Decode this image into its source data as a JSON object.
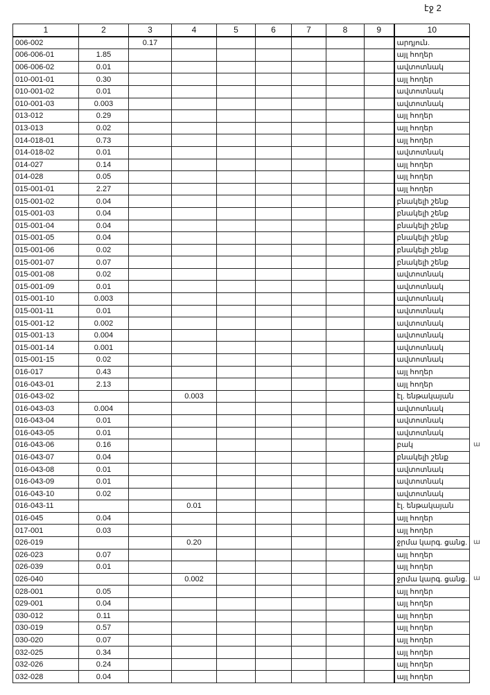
{
  "page_label": "էջ 2",
  "columns": [
    "1",
    "2",
    "3",
    "4",
    "5",
    "6",
    "7",
    "8",
    "9",
    "10"
  ],
  "rows": [
    [
      "006-002",
      "",
      "0.17",
      "",
      "արդյուն."
    ],
    [
      "006-006-01",
      "1.85",
      "",
      "",
      "այլ հողեր"
    ],
    [
      "006-006-02",
      "0.01",
      "",
      "",
      "ավտոտնակ"
    ],
    [
      "010-001-01",
      "0.30",
      "",
      "",
      "այլ հողեր"
    ],
    [
      "010-001-02",
      "0.01",
      "",
      "",
      "ավտոտնակ"
    ],
    [
      "010-001-03",
      "0.003",
      "",
      "",
      "ավտոտնակ"
    ],
    [
      "013-012",
      "0.29",
      "",
      "",
      "այլ հողեր"
    ],
    [
      "013-013",
      "0.02",
      "",
      "",
      "այլ հողեր"
    ],
    [
      "014-018-01",
      "0.73",
      "",
      "",
      "այլ հողեր"
    ],
    [
      "014-018-02",
      "0.01",
      "",
      "",
      "ավտոտնակ"
    ],
    [
      "014-027",
      "0.14",
      "",
      "",
      "այլ հողեր"
    ],
    [
      "014-028",
      "0.05",
      "",
      "",
      "այլ հողեր"
    ],
    [
      "015-001-01",
      "2.27",
      "",
      "",
      "այլ հողեր"
    ],
    [
      "015-001-02",
      "0.04",
      "",
      "",
      "բնակելի շենք"
    ],
    [
      "015-001-03",
      "0.04",
      "",
      "",
      "բնակելի շենք"
    ],
    [
      "015-001-04",
      "0.04",
      "",
      "",
      "բնակելի շենք"
    ],
    [
      "015-001-05",
      "0.04",
      "",
      "",
      "բնակելի շենք"
    ],
    [
      "015-001-06",
      "0.02",
      "",
      "",
      "բնակելի շենք"
    ],
    [
      "015-001-07",
      "0.07",
      "",
      "",
      "բնակելի շենք"
    ],
    [
      "015-001-08",
      "0.02",
      "",
      "",
      "ավտոտնակ"
    ],
    [
      "015-001-09",
      "0.01",
      "",
      "",
      "ավտոտնակ"
    ],
    [
      "015-001-10",
      "0.003",
      "",
      "",
      "ավտոտնակ"
    ],
    [
      "015-001-11",
      "0.01",
      "",
      "",
      "ավտոտնակ"
    ],
    [
      "015-001-12",
      "0.002",
      "",
      "",
      "ավտոտնակ"
    ],
    [
      "015-001-13",
      "0.004",
      "",
      "",
      "ավտոտնակ"
    ],
    [
      "015-001-14",
      "0.001",
      "",
      "",
      "ավտոտնակ"
    ],
    [
      "015-001-15",
      "0.02",
      "",
      "",
      "ավտոտնակ"
    ],
    [
      "016-017",
      "0.43",
      "",
      "",
      "այլ հողեր"
    ],
    [
      "016-043-01",
      "2.13",
      "",
      "",
      "այլ հողեր"
    ],
    [
      "016-043-02",
      "",
      "",
      "0.003",
      "էլ. ենթակայան"
    ],
    [
      "016-043-03",
      "0.004",
      "",
      "",
      "ավտոտնակ"
    ],
    [
      "016-043-04",
      "0.01",
      "",
      "",
      "ավտոտնակ"
    ],
    [
      "016-043-05",
      "0.01",
      "",
      "",
      "ավտոտնակ"
    ],
    [
      "016-043-06",
      "0.16",
      "",
      "",
      "բակ"
    ],
    [
      "016-043-07",
      "0.04",
      "",
      "",
      "բնակելի շենք"
    ],
    [
      "016-043-08",
      "0.01",
      "",
      "",
      "ավտոտնակ"
    ],
    [
      "016-043-09",
      "0.01",
      "",
      "",
      "ավտոտնակ"
    ],
    [
      "016-043-10",
      "0.02",
      "",
      "",
      "ավտոտնակ"
    ],
    [
      "016-043-11",
      "",
      "",
      "0.01",
      "էլ. ենթակայան"
    ],
    [
      "016-045",
      "0.04",
      "",
      "",
      "այլ հողեր"
    ],
    [
      "017-001",
      "0.03",
      "",
      "",
      "այլ հողեր"
    ],
    [
      "026-019",
      "",
      "",
      "0.20",
      "ջրմա կարգ. ցանց."
    ],
    [
      "026-023",
      "0.07",
      "",
      "",
      "այլ հողեր"
    ],
    [
      "026-039",
      "0.01",
      "",
      "",
      "այլ հողեր"
    ],
    [
      "026-040",
      "",
      "",
      "0.002",
      "ջրմա կարգ. ցանց."
    ],
    [
      "028-001",
      "0.05",
      "",
      "",
      "այլ հողեր"
    ],
    [
      "029-001",
      "0.04",
      "",
      "",
      "այլ հողեր"
    ],
    [
      "030-012",
      "0.11",
      "",
      "",
      "այլ հողեր"
    ],
    [
      "030-019",
      "0.57",
      "",
      "",
      "այլ հողեր"
    ],
    [
      "030-020",
      "0.07",
      "",
      "",
      "այլ հողեր"
    ],
    [
      "032-025",
      "0.34",
      "",
      "",
      "այլ հողեր"
    ],
    [
      "032-026",
      "0.24",
      "",
      "",
      "այլ հողեր"
    ],
    [
      "032-028",
      "0.04",
      "",
      "",
      "այլ հողեր"
    ]
  ],
  "margin_marks": [
    {
      "row": 33,
      "text": "ա"
    },
    {
      "row": 41,
      "text": "ա"
    },
    {
      "row": 44,
      "text": "ա"
    }
  ]
}
